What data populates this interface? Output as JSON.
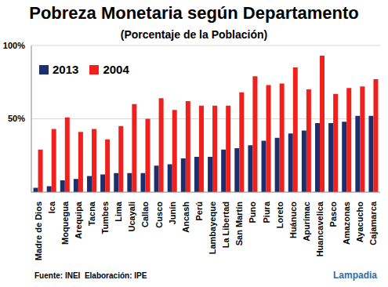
{
  "chart_data": {
    "type": "bar",
    "title": "Pobreza Monetaria según Departamento",
    "subtitle": "(Porcentaje de la Población)",
    "footnote": "Fuente: INEI  Elaboración: IPE",
    "watermark": "Lampadia",
    "categories": [
      "Madre de Dios",
      "Ica",
      "Moquegua",
      "Arequipa",
      "Tacna",
      "Tumbes",
      "Lima",
      "Ucayali",
      "Callao",
      "Cusco",
      "Junín",
      "Ancash",
      "Perú",
      "Lambayeque",
      "La Libertad",
      "San Martín",
      "Puno",
      "Piura",
      "Loreto",
      "Huánuco",
      "Apurímac",
      "Huancavelica",
      "Pasco",
      "Amazonas",
      "Ayacucho",
      "Cajamarca"
    ],
    "series": [
      {
        "name": "2013",
        "color": "#1c2e6b",
        "values": [
          3,
          4,
          8,
          9,
          11,
          12,
          13,
          13,
          13,
          18,
          19,
          23,
          24,
          24,
          29,
          30,
          32,
          35,
          37,
          40,
          42,
          47,
          47,
          48,
          52,
          52
        ]
      },
      {
        "name": "2004",
        "color": "#f0201c",
        "values": [
          29,
          43,
          51,
          41,
          43,
          36,
          45,
          60,
          50,
          64,
          56,
          62,
          59,
          59,
          59,
          68,
          79,
          73,
          74,
          85,
          70,
          93,
          67,
          71,
          72,
          77
        ]
      }
    ],
    "ylim": [
      0,
      100
    ],
    "yticks": [
      {
        "value": 50,
        "label": "50%"
      },
      {
        "value": 100,
        "label": "100%"
      }
    ],
    "grid": true,
    "legend": "top-left"
  }
}
